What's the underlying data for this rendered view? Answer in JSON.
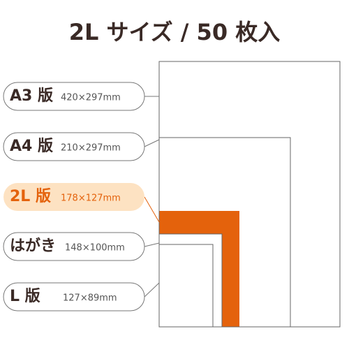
{
  "title": "2L サイズ / 50 枚入",
  "sizes": [
    {
      "name": "A3 版",
      "dimensions": "420×297mm"
    },
    {
      "name": "A4 版",
      "dimensions": "210×297mm"
    },
    {
      "name": "2L 版",
      "dimensions": "178×127mm"
    },
    {
      "name": "はがき",
      "dimensions": "148×100mm"
    },
    {
      "name": "L 版",
      "dimensions": "127×89mm"
    }
  ]
}
